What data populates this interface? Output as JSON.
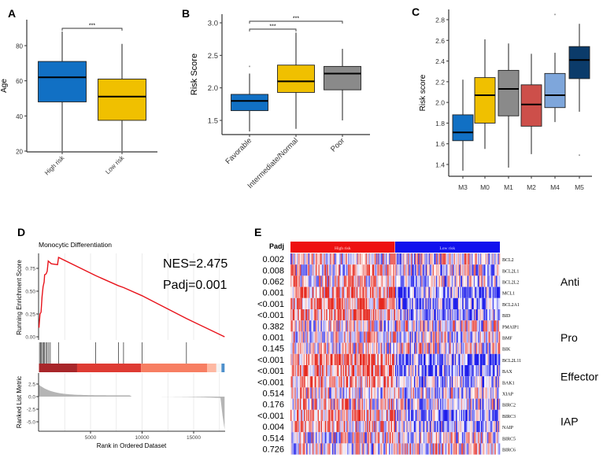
{
  "chart_data": [
    {
      "panel": "A",
      "type": "box",
      "ylabel": "Age",
      "ylim": [
        18,
        95
      ],
      "yticks": [
        20,
        40,
        60,
        80
      ],
      "categories": [
        "High risk",
        "Low risk"
      ],
      "boxes": [
        {
          "min": 20,
          "q1": 48,
          "median": 62,
          "q3": 71,
          "max": 88,
          "color": "#1170c4"
        },
        {
          "min": 20,
          "q1": 37.5,
          "median": 51,
          "q3": 61,
          "max": 81,
          "color": "#f0c000"
        }
      ],
      "significance": [
        {
          "from": 0,
          "to": 1,
          "label": "***"
        }
      ]
    },
    {
      "panel": "B",
      "type": "box",
      "ylabel": "Risk Score",
      "ylim": [
        1.28,
        3.15
      ],
      "yticks": [
        1.5,
        2.0,
        2.5,
        3.0
      ],
      "categories": [
        "Favorable",
        "Intermediate/Normal",
        "Poor"
      ],
      "boxes": [
        {
          "min": 1.33,
          "q1": 1.65,
          "median": 1.8,
          "q3": 1.9,
          "max": 2.22,
          "outliers": [
            2.33
          ],
          "color": "#1170c4"
        },
        {
          "min": 1.37,
          "q1": 1.93,
          "median": 2.1,
          "q3": 2.35,
          "max": 2.85,
          "color": "#f0c000"
        },
        {
          "min": 1.5,
          "q1": 1.97,
          "median": 2.22,
          "q3": 2.33,
          "max": 2.6,
          "color": "#8a8a8a"
        }
      ],
      "significance": [
        {
          "from": 0,
          "to": 1,
          "label": "***"
        },
        {
          "from": 0,
          "to": 2,
          "label": "***"
        }
      ]
    },
    {
      "panel": "C",
      "type": "box",
      "ylabel": "Risk score",
      "ylim": [
        1.3,
        2.9
      ],
      "yticks": [
        1.4,
        1.6,
        1.8,
        2.0,
        2.2,
        2.4,
        2.6,
        2.8
      ],
      "categories": [
        "M3",
        "M0",
        "M1",
        "M2",
        "M4",
        "M5"
      ],
      "boxes": [
        {
          "min": 1.34,
          "q1": 1.63,
          "median": 1.71,
          "q3": 1.88,
          "max": 2.22,
          "color": "#1170c4"
        },
        {
          "min": 1.55,
          "q1": 1.8,
          "median": 2.07,
          "q3": 2.24,
          "max": 2.61,
          "color": "#f0c000"
        },
        {
          "min": 1.37,
          "q1": 1.87,
          "median": 2.13,
          "q3": 2.31,
          "max": 2.57,
          "color": "#8a8a8a"
        },
        {
          "min": 1.5,
          "q1": 1.77,
          "median": 1.98,
          "q3": 2.17,
          "max": 2.47,
          "color": "#cd4f4a"
        },
        {
          "min": 1.81,
          "q1": 1.95,
          "median": 2.07,
          "q3": 2.28,
          "max": 2.48,
          "outliers": [
            2.85
          ],
          "color": "#7ea6db"
        },
        {
          "min": 1.91,
          "q1": 2.23,
          "median": 2.41,
          "q3": 2.54,
          "max": 2.76,
          "outliers": [
            1.49
          ],
          "color": "#0b3b6a"
        }
      ]
    },
    {
      "panel": "D",
      "type": "line",
      "title": "Monocytic Differentiation",
      "xlabel": "Rank in Ordered Dataset",
      "ylabel_top": "Running Enrichment Score",
      "ylabel_bottom": "Ranked List Metric",
      "nes": "NES=2.475",
      "padj": "Padj=0.001",
      "xlim": [
        0,
        18000
      ],
      "xticks": [
        5000,
        10000,
        15000
      ],
      "es_yticks": [
        "0.00",
        "0.25",
        "0.50",
        "0.75"
      ],
      "metric_yticks": [
        "2.5",
        "0.0",
        "-2.5",
        "-5.0"
      ],
      "es_curve": [
        [
          0,
          0.1
        ],
        [
          100,
          0.25
        ],
        [
          200,
          0.27
        ],
        [
          300,
          0.44
        ],
        [
          400,
          0.55
        ],
        [
          500,
          0.6
        ],
        [
          550,
          0.68
        ],
        [
          700,
          0.69
        ],
        [
          800,
          0.72
        ],
        [
          900,
          0.83
        ],
        [
          1200,
          0.8
        ],
        [
          1800,
          0.79
        ],
        [
          1900,
          0.87
        ],
        [
          5500,
          0.67
        ],
        [
          7700,
          0.56
        ],
        [
          8200,
          0.54
        ],
        [
          10000,
          0.45
        ],
        [
          14300,
          0.2
        ],
        [
          18000,
          0.0
        ]
      ],
      "hits": [
        50,
        150,
        250,
        350,
        450,
        550,
        700,
        800,
        950,
        1100,
        1900,
        5500,
        7700,
        8200,
        10000,
        14300
      ],
      "line_color": "#e8131b"
    },
    {
      "panel": "E",
      "type": "heatmap",
      "padj_header": "Padj",
      "groups": [
        {
          "label": "High risk",
          "color": "#ee1111"
        },
        {
          "label": "Low risk",
          "color": "#1111ee"
        }
      ],
      "rows": [
        {
          "gene": "BCL2",
          "padj": "0.002"
        },
        {
          "gene": "BCL2L1",
          "padj": "0.008"
        },
        {
          "gene": "BCL2L2",
          "padj": "0.062"
        },
        {
          "gene": "MCL1",
          "padj": "0.001"
        },
        {
          "gene": "BCL2A1",
          "padj": "<0.001"
        },
        {
          "gene": "BID",
          "padj": "<0.001"
        },
        {
          "gene": "PMAIP1",
          "padj": "0.382"
        },
        {
          "gene": "BMF",
          "padj": "0.001"
        },
        {
          "gene": "BIK",
          "padj": "0.145"
        },
        {
          "gene": "BCL2L11",
          "padj": "<0.001"
        },
        {
          "gene": "BAX",
          "padj": "<0.001"
        },
        {
          "gene": "BAK1",
          "padj": "<0.001"
        },
        {
          "gene": "XIAP",
          "padj": "0.514"
        },
        {
          "gene": "BIRC2",
          "padj": "0.176"
        },
        {
          "gene": "BIRC3",
          "padj": "<0.001"
        },
        {
          "gene": "NAIP",
          "padj": "0.004"
        },
        {
          "gene": "BIRC5",
          "padj": "0.514"
        },
        {
          "gene": "BIRC6",
          "padj": "0.726"
        }
      ],
      "row_groups": [
        {
          "label": "Anti",
          "start": 0,
          "end": 4
        },
        {
          "label": "Pro",
          "start": 5,
          "end": 9
        },
        {
          "label": "Effector",
          "start": 10,
          "end": 11
        },
        {
          "label": "IAP",
          "start": 12,
          "end": 17
        }
      ]
    }
  ],
  "panel_labels": [
    "A",
    "B",
    "C",
    "D",
    "E"
  ]
}
